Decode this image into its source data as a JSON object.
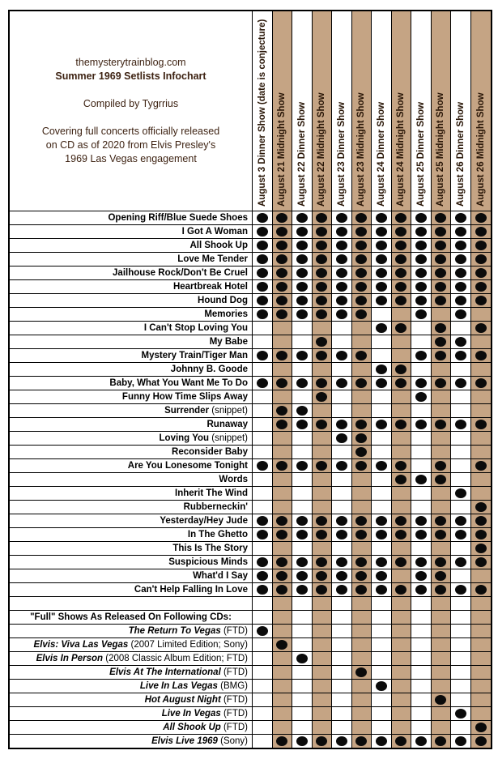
{
  "header": {
    "site": "themysterytrainblog.com",
    "title": "Summer 1969 Setlists Infochart",
    "compiled_by": "Compiled by Tygrrius",
    "description_lines": [
      "Covering full concerts officially released",
      "on CD as of 2020 from Elvis Presley's",
      "1969 Las Vegas engagement"
    ]
  },
  "colors": {
    "shaded_column": "#c5a484",
    "header_text": "#3e2313",
    "column_header_text": "#2a1708",
    "row_text": "#000000",
    "dot": "#0b0b0b",
    "border": "#000000",
    "background": "#ffffff"
  },
  "chart_data": {
    "type": "table",
    "title": "Summer 1969 Setlists Infochart",
    "legend": "filled dot = song performed at that show / CD contains that full show",
    "columns": [
      {
        "label": "August 3 Dinner Show (date is conjecture)",
        "shaded": false
      },
      {
        "label": "August 21 Midnight Show",
        "shaded": true
      },
      {
        "label": "August 22 Dinner Show",
        "shaded": false
      },
      {
        "label": "August 22 Midnight Show",
        "shaded": true
      },
      {
        "label": "August 23 Dinner Show",
        "shaded": false
      },
      {
        "label": "August 23 Midnight Show",
        "shaded": true
      },
      {
        "label": "August 24 Dinner Show",
        "shaded": false
      },
      {
        "label": "August 24 Midnight Show",
        "shaded": true
      },
      {
        "label": "August 25 Dinner Show",
        "shaded": false
      },
      {
        "label": "August 25 Midnight Show",
        "shaded": true
      },
      {
        "label": "August 26 Dinner Show",
        "shaded": false
      },
      {
        "label": "August 26 Midnight Show",
        "shaded": true
      }
    ],
    "song_rows": [
      {
        "title": "Opening Riff/Blue Suede Shoes",
        "suffix": "",
        "values": [
          1,
          1,
          1,
          1,
          1,
          1,
          1,
          1,
          1,
          1,
          1,
          1
        ]
      },
      {
        "title": "I Got A Woman",
        "suffix": "",
        "values": [
          1,
          1,
          1,
          1,
          1,
          1,
          1,
          1,
          1,
          1,
          1,
          1
        ]
      },
      {
        "title": "All Shook Up",
        "suffix": "",
        "values": [
          1,
          1,
          1,
          1,
          1,
          1,
          1,
          1,
          1,
          1,
          1,
          1
        ]
      },
      {
        "title": "Love Me Tender",
        "suffix": "",
        "values": [
          1,
          1,
          1,
          1,
          1,
          1,
          1,
          1,
          1,
          1,
          1,
          1
        ]
      },
      {
        "title": "Jailhouse Rock/Don't Be Cruel",
        "suffix": "",
        "values": [
          1,
          1,
          1,
          1,
          1,
          1,
          1,
          1,
          1,
          1,
          1,
          1
        ]
      },
      {
        "title": "Heartbreak Hotel",
        "suffix": "",
        "values": [
          1,
          1,
          1,
          1,
          1,
          1,
          1,
          1,
          1,
          1,
          1,
          1
        ]
      },
      {
        "title": "Hound Dog",
        "suffix": "",
        "values": [
          1,
          1,
          1,
          1,
          1,
          1,
          1,
          1,
          1,
          1,
          1,
          1
        ]
      },
      {
        "title": "Memories",
        "suffix": "",
        "values": [
          1,
          1,
          1,
          1,
          1,
          1,
          0,
          0,
          1,
          0,
          1,
          0
        ]
      },
      {
        "title": "I Can't Stop Loving You",
        "suffix": "",
        "values": [
          0,
          0,
          0,
          0,
          0,
          0,
          1,
          1,
          0,
          1,
          0,
          1
        ]
      },
      {
        "title": "My Babe",
        "suffix": "",
        "values": [
          0,
          0,
          0,
          1,
          0,
          0,
          0,
          0,
          0,
          1,
          1,
          0
        ]
      },
      {
        "title": "Mystery Train/Tiger Man",
        "suffix": "",
        "values": [
          1,
          1,
          1,
          1,
          1,
          1,
          0,
          0,
          1,
          1,
          1,
          1
        ]
      },
      {
        "title": "Johnny B. Goode",
        "suffix": "",
        "values": [
          0,
          0,
          0,
          0,
          0,
          0,
          1,
          1,
          0,
          0,
          0,
          0
        ]
      },
      {
        "title": "Baby, What You Want Me To Do",
        "suffix": "",
        "values": [
          1,
          1,
          1,
          1,
          1,
          1,
          1,
          1,
          1,
          1,
          1,
          1
        ]
      },
      {
        "title": "Funny How Time Slips Away",
        "suffix": "",
        "values": [
          0,
          0,
          0,
          1,
          0,
          0,
          0,
          0,
          1,
          0,
          0,
          0
        ]
      },
      {
        "title": "Surrender",
        "suffix": " (snippet)",
        "values": [
          0,
          1,
          1,
          0,
          0,
          0,
          0,
          0,
          0,
          0,
          0,
          0
        ]
      },
      {
        "title": "Runaway",
        "suffix": "",
        "values": [
          0,
          1,
          1,
          1,
          1,
          1,
          1,
          1,
          1,
          1,
          1,
          1
        ]
      },
      {
        "title": "Loving You",
        "suffix": " (snippet)",
        "values": [
          0,
          0,
          0,
          0,
          1,
          1,
          0,
          0,
          0,
          0,
          0,
          0
        ]
      },
      {
        "title": "Reconsider Baby",
        "suffix": "",
        "values": [
          0,
          0,
          0,
          0,
          0,
          1,
          0,
          0,
          0,
          0,
          0,
          0
        ]
      },
      {
        "title": "Are You Lonesome Tonight",
        "suffix": "",
        "values": [
          1,
          1,
          1,
          1,
          1,
          1,
          1,
          1,
          0,
          1,
          0,
          1
        ]
      },
      {
        "title": "Words",
        "suffix": "",
        "values": [
          0,
          0,
          0,
          0,
          0,
          0,
          0,
          1,
          1,
          1,
          0,
          0
        ]
      },
      {
        "title": "Inherit The Wind",
        "suffix": "",
        "values": [
          0,
          0,
          0,
          0,
          0,
          0,
          0,
          0,
          0,
          0,
          1,
          0
        ]
      },
      {
        "title": "Rubberneckin'",
        "suffix": "",
        "values": [
          0,
          0,
          0,
          0,
          0,
          0,
          0,
          0,
          0,
          0,
          0,
          1
        ]
      },
      {
        "title": "Yesterday/Hey Jude",
        "suffix": "",
        "values": [
          1,
          1,
          1,
          1,
          1,
          1,
          1,
          1,
          1,
          1,
          1,
          1
        ]
      },
      {
        "title": "In The Ghetto",
        "suffix": "",
        "values": [
          1,
          1,
          1,
          1,
          1,
          1,
          1,
          1,
          1,
          1,
          1,
          1
        ]
      },
      {
        "title": "This Is The Story",
        "suffix": "",
        "values": [
          0,
          0,
          0,
          0,
          0,
          0,
          0,
          0,
          0,
          0,
          0,
          1
        ]
      },
      {
        "title": "Suspicious Minds",
        "suffix": "",
        "values": [
          1,
          1,
          1,
          1,
          1,
          1,
          1,
          1,
          1,
          1,
          1,
          1
        ]
      },
      {
        "title": "What'd I Say",
        "suffix": "",
        "values": [
          1,
          1,
          1,
          1,
          1,
          1,
          1,
          0,
          1,
          1,
          0,
          0
        ]
      },
      {
        "title": "Can't Help Falling In Love",
        "suffix": "",
        "values": [
          1,
          1,
          1,
          1,
          1,
          1,
          1,
          1,
          1,
          1,
          1,
          1
        ]
      }
    ],
    "cd_heading": "\"Full\" Shows As Released On Following CDs:",
    "cd_rows": [
      {
        "title": "The Return To Vegas",
        "suffix": " (FTD)",
        "values": [
          1,
          0,
          0,
          0,
          0,
          0,
          0,
          0,
          0,
          0,
          0,
          0
        ]
      },
      {
        "title": "Elvis: Viva Las Vegas",
        "suffix": " (2007 Limited Edition; Sony)",
        "values": [
          0,
          1,
          0,
          0,
          0,
          0,
          0,
          0,
          0,
          0,
          0,
          0
        ]
      },
      {
        "title": "Elvis In Person",
        "suffix": " (2008 Classic Album Edition; FTD)",
        "values": [
          0,
          0,
          1,
          0,
          0,
          0,
          0,
          0,
          0,
          0,
          0,
          0
        ]
      },
      {
        "title": "Elvis At The International",
        "suffix": " (FTD)",
        "values": [
          0,
          0,
          0,
          0,
          0,
          1,
          0,
          0,
          0,
          0,
          0,
          0
        ]
      },
      {
        "title": "Live In Las Vegas",
        "suffix": " (BMG)",
        "values": [
          0,
          0,
          0,
          0,
          0,
          0,
          1,
          0,
          0,
          0,
          0,
          0
        ]
      },
      {
        "title": "Hot August Night",
        "suffix": " (FTD)",
        "values": [
          0,
          0,
          0,
          0,
          0,
          0,
          0,
          0,
          0,
          1,
          0,
          0
        ]
      },
      {
        "title": "Live In Vegas",
        "suffix": " (FTD)",
        "values": [
          0,
          0,
          0,
          0,
          0,
          0,
          0,
          0,
          0,
          0,
          1,
          0
        ]
      },
      {
        "title": "All Shook Up",
        "suffix": " (FTD)",
        "values": [
          0,
          0,
          0,
          0,
          0,
          0,
          0,
          0,
          0,
          0,
          0,
          1
        ]
      },
      {
        "title": "Elvis Live 1969",
        "suffix": " (Sony)",
        "values": [
          0,
          1,
          1,
          1,
          1,
          1,
          1,
          1,
          1,
          1,
          1,
          1
        ]
      }
    ]
  }
}
